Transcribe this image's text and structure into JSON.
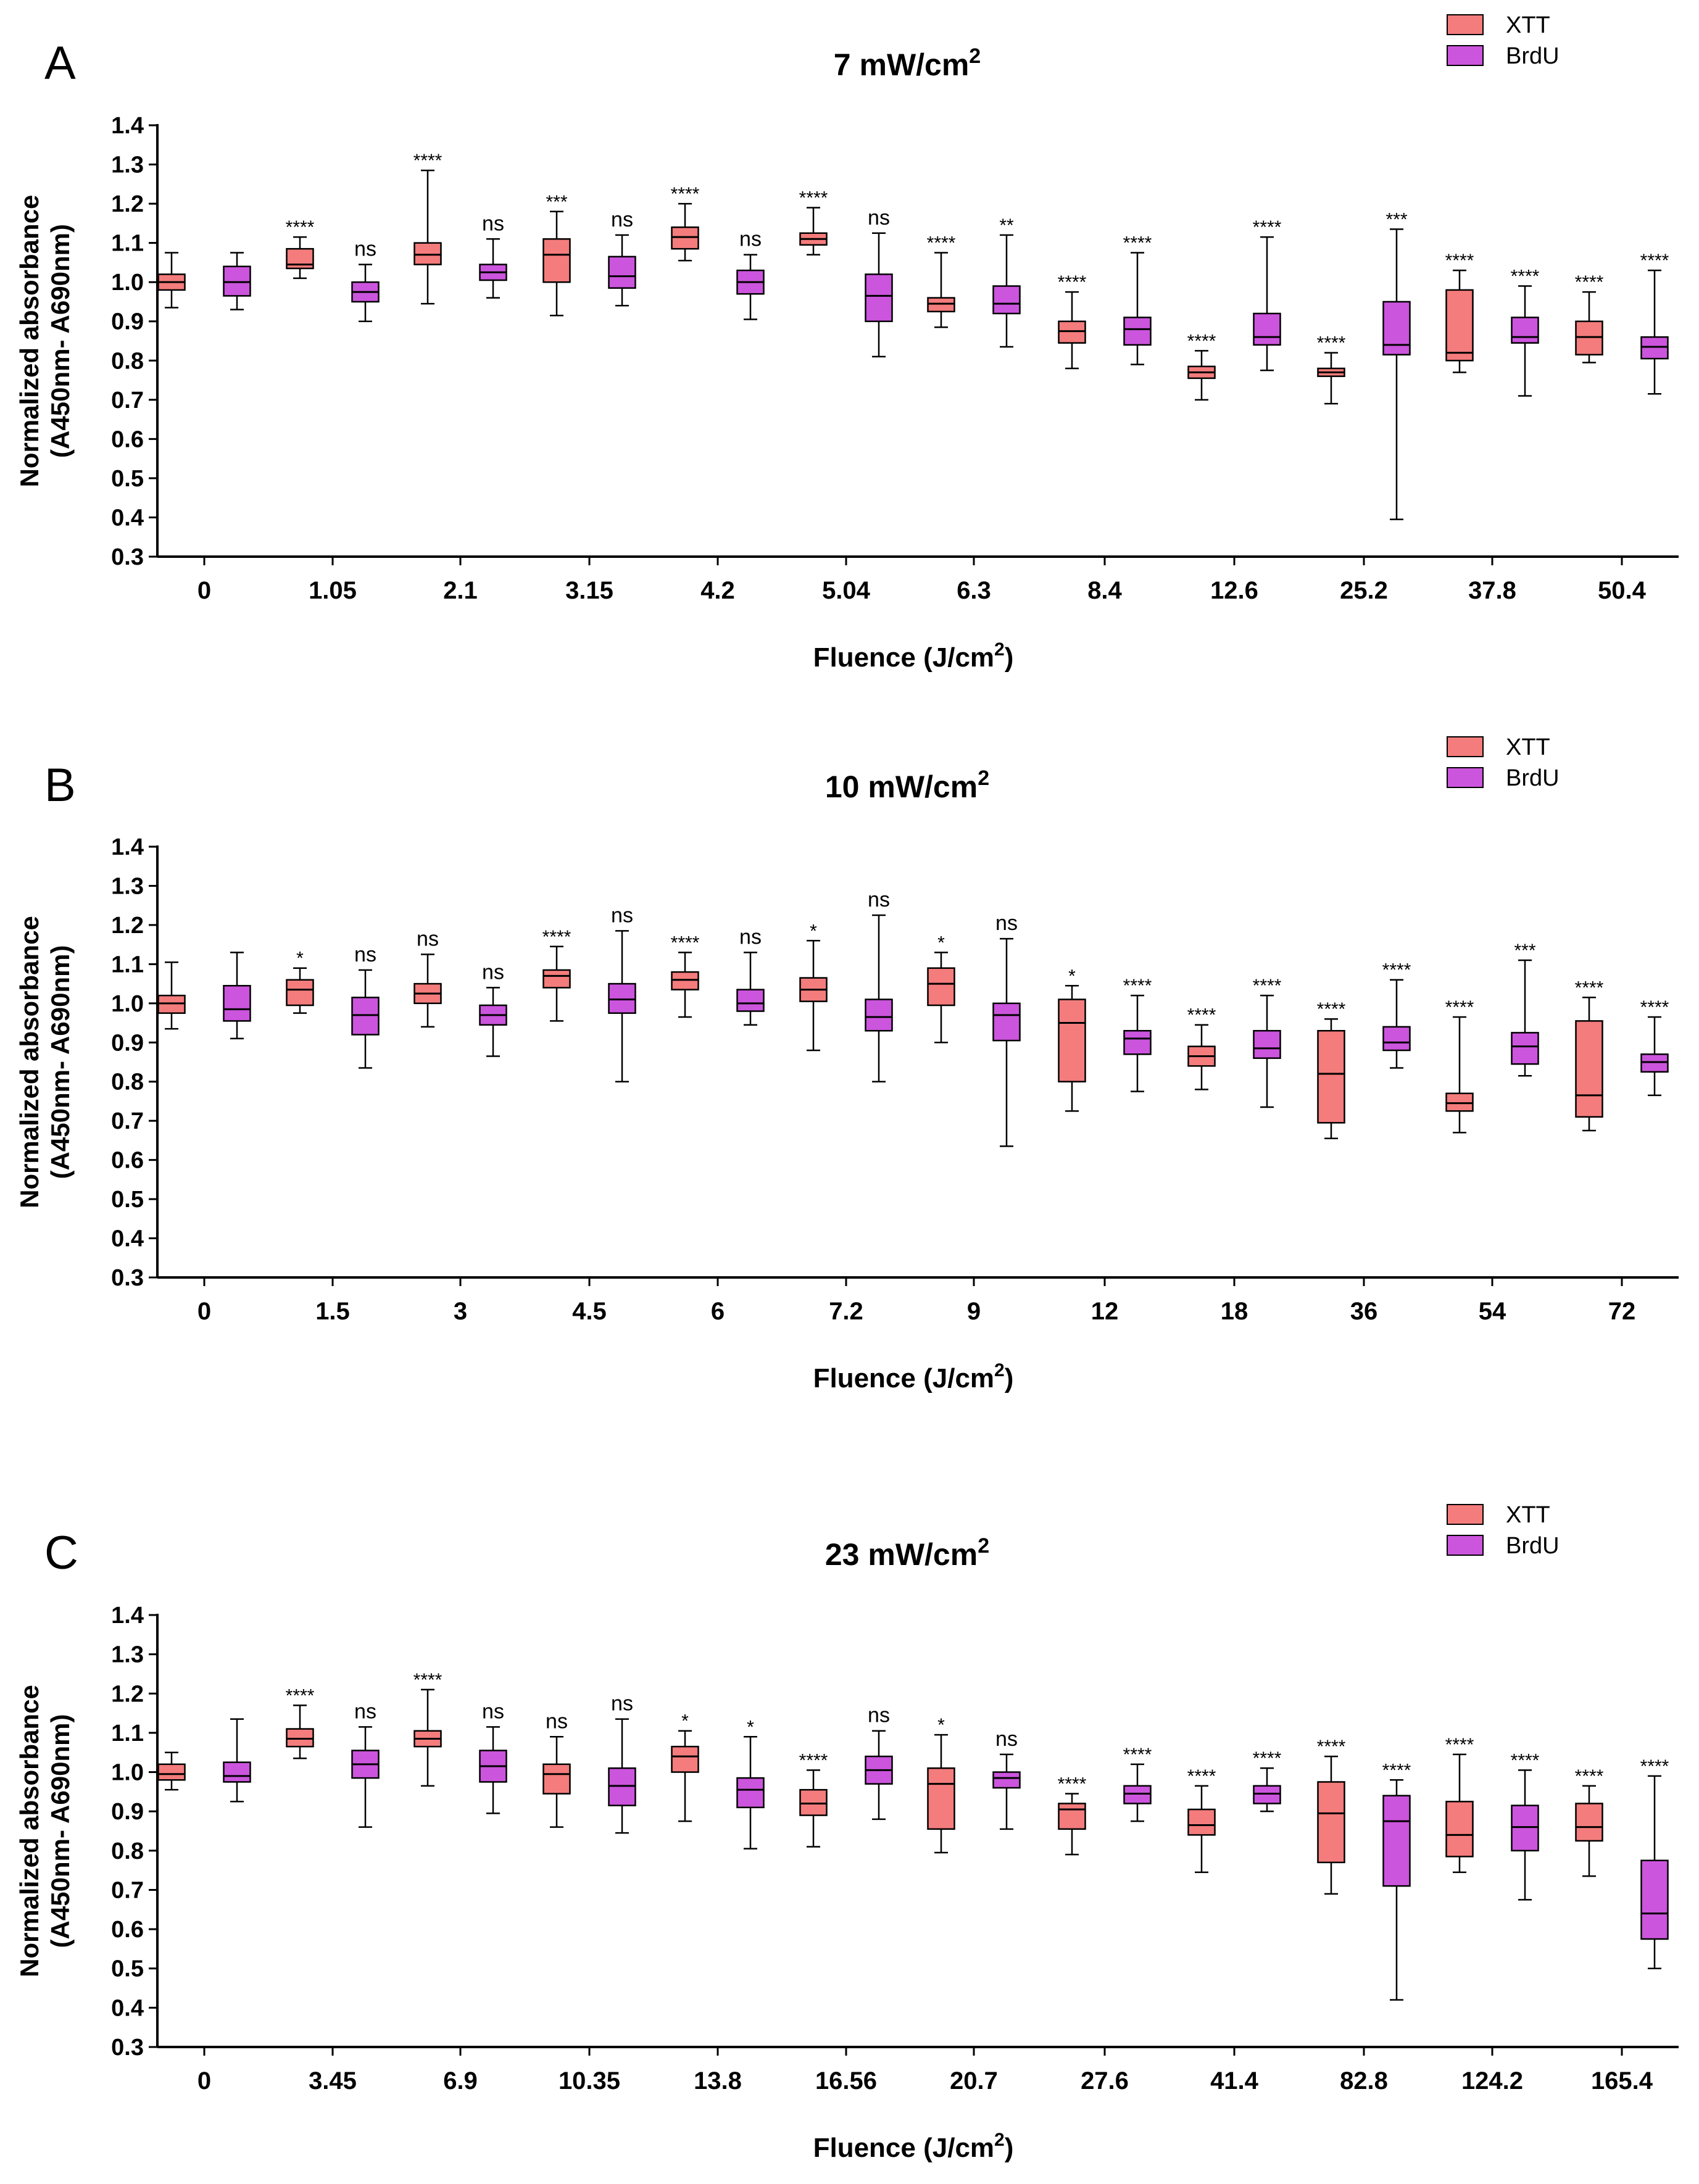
{
  "figure": {
    "legend_items": [
      {
        "label": "XTT",
        "color": "#F47C7C"
      },
      {
        "label": "BrdU",
        "color": "#CC55DD"
      }
    ],
    "box_stroke": "#000000"
  },
  "chart_data": [
    {
      "type": "boxplot",
      "panel_label": "A",
      "title_main": "7 mW/cm",
      "title_sup": "2",
      "ylabel_line1": "Normalized absorbance",
      "ylabel_line2": "(A450nm- A690nm)",
      "xlabel_main": "Fluence (J/cm",
      "xlabel_sup": "2",
      "xlabel_end": ")",
      "ylim": [
        0.3,
        1.4
      ],
      "yticks": [
        "0.3",
        "0.4",
        "0.5",
        "0.6",
        "0.7",
        "0.8",
        "0.9",
        "1.0",
        "1.1",
        "1.2",
        "1.3",
        "1.4"
      ],
      "categories": [
        "0",
        "1.05",
        "2.1",
        "3.15",
        "4.2",
        "5.04",
        "6.3",
        "8.4",
        "12.6",
        "25.2",
        "37.8",
        "50.4"
      ],
      "series": [
        {
          "name": "XTT",
          "boxes": [
            {
              "min": 0.935,
              "q1": 0.98,
              "median": 1.0,
              "q3": 1.02,
              "max": 1.075,
              "sig": ""
            },
            {
              "min": 1.01,
              "q1": 1.035,
              "median": 1.045,
              "q3": 1.085,
              "max": 1.115,
              "sig": "****"
            },
            {
              "min": 0.945,
              "q1": 1.045,
              "median": 1.07,
              "q3": 1.1,
              "max": 1.285,
              "sig": "****"
            },
            {
              "min": 0.915,
              "q1": 1.0,
              "median": 1.07,
              "q3": 1.11,
              "max": 1.18,
              "sig": "***"
            },
            {
              "min": 1.055,
              "q1": 1.085,
              "median": 1.115,
              "q3": 1.14,
              "max": 1.2,
              "sig": "****"
            },
            {
              "min": 1.07,
              "q1": 1.095,
              "median": 1.11,
              "q3": 1.125,
              "max": 1.19,
              "sig": "****"
            },
            {
              "min": 0.885,
              "q1": 0.925,
              "median": 0.945,
              "q3": 0.96,
              "max": 1.075,
              "sig": "****"
            },
            {
              "min": 0.78,
              "q1": 0.845,
              "median": 0.875,
              "q3": 0.9,
              "max": 0.975,
              "sig": "****"
            },
            {
              "min": 0.7,
              "q1": 0.755,
              "median": 0.77,
              "q3": 0.785,
              "max": 0.825,
              "sig": "****"
            },
            {
              "min": 0.69,
              "q1": 0.76,
              "median": 0.77,
              "q3": 0.78,
              "max": 0.82,
              "sig": "****"
            },
            {
              "min": 0.77,
              "q1": 0.8,
              "median": 0.82,
              "q3": 0.98,
              "max": 1.03,
              "sig": "****"
            },
            {
              "min": 0.795,
              "q1": 0.815,
              "median": 0.86,
              "q3": 0.9,
              "max": 0.975,
              "sig": "****"
            }
          ]
        },
        {
          "name": "BrdU",
          "boxes": [
            {
              "min": 0.93,
              "q1": 0.965,
              "median": 1.0,
              "q3": 1.04,
              "max": 1.075,
              "sig": ""
            },
            {
              "min": 0.9,
              "q1": 0.95,
              "median": 0.975,
              "q3": 1.0,
              "max": 1.045,
              "sig": "ns"
            },
            {
              "min": 0.96,
              "q1": 1.005,
              "median": 1.025,
              "q3": 1.045,
              "max": 1.11,
              "sig": "ns"
            },
            {
              "min": 0.94,
              "q1": 0.985,
              "median": 1.015,
              "q3": 1.065,
              "max": 1.12,
              "sig": "ns"
            },
            {
              "min": 0.905,
              "q1": 0.97,
              "median": 1.0,
              "q3": 1.03,
              "max": 1.07,
              "sig": "ns"
            },
            {
              "min": 0.81,
              "q1": 0.9,
              "median": 0.965,
              "q3": 1.02,
              "max": 1.125,
              "sig": "ns"
            },
            {
              "min": 0.835,
              "q1": 0.92,
              "median": 0.945,
              "q3": 0.99,
              "max": 1.12,
              "sig": "**"
            },
            {
              "min": 0.79,
              "q1": 0.84,
              "median": 0.88,
              "q3": 0.91,
              "max": 1.075,
              "sig": "****"
            },
            {
              "min": 0.775,
              "q1": 0.84,
              "median": 0.86,
              "q3": 0.92,
              "max": 1.115,
              "sig": "****"
            },
            {
              "min": 0.395,
              "q1": 0.815,
              "median": 0.84,
              "q3": 0.95,
              "max": 1.135,
              "sig": "***"
            },
            {
              "min": 0.71,
              "q1": 0.845,
              "median": 0.86,
              "q3": 0.91,
              "max": 0.99,
              "sig": "****"
            },
            {
              "min": 0.715,
              "q1": 0.805,
              "median": 0.835,
              "q3": 0.86,
              "max": 1.03,
              "sig": "****"
            }
          ]
        }
      ]
    },
    {
      "type": "boxplot",
      "panel_label": "B",
      "title_main": "10 mW/cm",
      "title_sup": "2",
      "ylabel_line1": "Normalized absorbance",
      "ylabel_line2": "(A450nm- A690nm)",
      "xlabel_main": "Fluence (J/cm",
      "xlabel_sup": "2",
      "xlabel_end": ")",
      "ylim": [
        0.3,
        1.4
      ],
      "yticks": [
        "0.3",
        "0.4",
        "0.5",
        "0.6",
        "0.7",
        "0.8",
        "0.9",
        "1.0",
        "1.1",
        "1.2",
        "1.3",
        "1.4"
      ],
      "categories": [
        "0",
        "1.5",
        "3",
        "4.5",
        "6",
        "7.2",
        "9",
        "12",
        "18",
        "36",
        "54",
        "72"
      ],
      "series": [
        {
          "name": "XTT",
          "boxes": [
            {
              "min": 0.935,
              "q1": 0.975,
              "median": 1.0,
              "q3": 1.02,
              "max": 1.105,
              "sig": ""
            },
            {
              "min": 0.975,
              "q1": 0.995,
              "median": 1.035,
              "q3": 1.06,
              "max": 1.09,
              "sig": "*"
            },
            {
              "min": 0.94,
              "q1": 1.0,
              "median": 1.025,
              "q3": 1.05,
              "max": 1.125,
              "sig": "ns"
            },
            {
              "min": 0.955,
              "q1": 1.04,
              "median": 1.07,
              "q3": 1.085,
              "max": 1.145,
              "sig": "****"
            },
            {
              "min": 0.965,
              "q1": 1.035,
              "median": 1.06,
              "q3": 1.08,
              "max": 1.13,
              "sig": "****"
            },
            {
              "min": 0.88,
              "q1": 1.005,
              "median": 1.035,
              "q3": 1.065,
              "max": 1.16,
              "sig": "*"
            },
            {
              "min": 0.9,
              "q1": 0.995,
              "median": 1.05,
              "q3": 1.09,
              "max": 1.13,
              "sig": "*"
            },
            {
              "min": 0.725,
              "q1": 0.8,
              "median": 0.95,
              "q3": 1.01,
              "max": 1.045,
              "sig": "*"
            },
            {
              "min": 0.78,
              "q1": 0.84,
              "median": 0.865,
              "q3": 0.89,
              "max": 0.945,
              "sig": "****"
            },
            {
              "min": 0.655,
              "q1": 0.695,
              "median": 0.82,
              "q3": 0.93,
              "max": 0.96,
              "sig": "****"
            },
            {
              "min": 0.67,
              "q1": 0.725,
              "median": 0.745,
              "q3": 0.77,
              "max": 0.965,
              "sig": "****"
            },
            {
              "min": 0.675,
              "q1": 0.71,
              "median": 0.765,
              "q3": 0.955,
              "max": 1.015,
              "sig": "****"
            }
          ]
        },
        {
          "name": "BrdU",
          "boxes": [
            {
              "min": 0.91,
              "q1": 0.955,
              "median": 0.985,
              "q3": 1.045,
              "max": 1.13,
              "sig": ""
            },
            {
              "min": 0.835,
              "q1": 0.92,
              "median": 0.97,
              "q3": 1.015,
              "max": 1.085,
              "sig": "ns"
            },
            {
              "min": 0.865,
              "q1": 0.945,
              "median": 0.97,
              "q3": 0.995,
              "max": 1.04,
              "sig": "ns"
            },
            {
              "min": 0.8,
              "q1": 0.975,
              "median": 1.01,
              "q3": 1.05,
              "max": 1.185,
              "sig": "ns"
            },
            {
              "min": 0.945,
              "q1": 0.98,
              "median": 1.0,
              "q3": 1.035,
              "max": 1.13,
              "sig": "ns"
            },
            {
              "min": 0.8,
              "q1": 0.93,
              "median": 0.965,
              "q3": 1.01,
              "max": 1.225,
              "sig": "ns"
            },
            {
              "min": 0.635,
              "q1": 0.905,
              "median": 0.97,
              "q3": 1.0,
              "max": 1.165,
              "sig": "ns"
            },
            {
              "min": 0.775,
              "q1": 0.87,
              "median": 0.91,
              "q3": 0.93,
              "max": 1.02,
              "sig": "****"
            },
            {
              "min": 0.735,
              "q1": 0.86,
              "median": 0.885,
              "q3": 0.93,
              "max": 1.02,
              "sig": "****"
            },
            {
              "min": 0.835,
              "q1": 0.88,
              "median": 0.9,
              "q3": 0.94,
              "max": 1.06,
              "sig": "****"
            },
            {
              "min": 0.815,
              "q1": 0.845,
              "median": 0.89,
              "q3": 0.925,
              "max": 1.11,
              "sig": "***"
            },
            {
              "min": 0.765,
              "q1": 0.825,
              "median": 0.85,
              "q3": 0.87,
              "max": 0.965,
              "sig": "****"
            }
          ]
        }
      ]
    },
    {
      "type": "boxplot",
      "panel_label": "C",
      "title_main": "23 mW/cm",
      "title_sup": "2",
      "ylabel_line1": "Normalized absorbance",
      "ylabel_line2": "(A450nm- A690nm)",
      "xlabel_main": "Fluence (J/cm",
      "xlabel_sup": "2",
      "xlabel_end": ")",
      "ylim": [
        0.3,
        1.4
      ],
      "yticks": [
        "0.3",
        "0.4",
        "0.5",
        "0.6",
        "0.7",
        "0.8",
        "0.9",
        "1.0",
        "1.1",
        "1.2",
        "1.3",
        "1.4"
      ],
      "categories": [
        "0",
        "3.45",
        "6.9",
        "10.35",
        "13.8",
        "16.56",
        "20.7",
        "27.6",
        "41.4",
        "82.8",
        "124.2",
        "165.4"
      ],
      "series": [
        {
          "name": "XTT",
          "boxes": [
            {
              "min": 0.955,
              "q1": 0.98,
              "median": 0.995,
              "q3": 1.02,
              "max": 1.05,
              "sig": ""
            },
            {
              "min": 1.035,
              "q1": 1.065,
              "median": 1.085,
              "q3": 1.11,
              "max": 1.17,
              "sig": "****"
            },
            {
              "min": 0.965,
              "q1": 1.065,
              "median": 1.085,
              "q3": 1.105,
              "max": 1.21,
              "sig": "****"
            },
            {
              "min": 0.86,
              "q1": 0.945,
              "median": 0.995,
              "q3": 1.02,
              "max": 1.09,
              "sig": "ns"
            },
            {
              "min": 0.875,
              "q1": 1.0,
              "median": 1.04,
              "q3": 1.065,
              "max": 1.105,
              "sig": "*"
            },
            {
              "min": 0.81,
              "q1": 0.89,
              "median": 0.92,
              "q3": 0.955,
              "max": 1.005,
              "sig": "****"
            },
            {
              "min": 0.795,
              "q1": 0.855,
              "median": 0.97,
              "q3": 1.01,
              "max": 1.095,
              "sig": "*"
            },
            {
              "min": 0.79,
              "q1": 0.855,
              "median": 0.905,
              "q3": 0.92,
              "max": 0.945,
              "sig": "****"
            },
            {
              "min": 0.745,
              "q1": 0.84,
              "median": 0.865,
              "q3": 0.905,
              "max": 0.965,
              "sig": "****"
            },
            {
              "min": 0.69,
              "q1": 0.77,
              "median": 0.895,
              "q3": 0.975,
              "max": 1.04,
              "sig": "****"
            },
            {
              "min": 0.745,
              "q1": 0.785,
              "median": 0.84,
              "q3": 0.925,
              "max": 1.045,
              "sig": "****"
            },
            {
              "min": 0.735,
              "q1": 0.825,
              "median": 0.86,
              "q3": 0.92,
              "max": 0.965,
              "sig": "****"
            }
          ]
        },
        {
          "name": "BrdU",
          "boxes": [
            {
              "min": 0.925,
              "q1": 0.975,
              "median": 0.99,
              "q3": 1.025,
              "max": 1.135,
              "sig": ""
            },
            {
              "min": 0.86,
              "q1": 0.985,
              "median": 1.02,
              "q3": 1.055,
              "max": 1.115,
              "sig": "ns"
            },
            {
              "min": 0.895,
              "q1": 0.975,
              "median": 1.015,
              "q3": 1.055,
              "max": 1.115,
              "sig": "ns"
            },
            {
              "min": 0.845,
              "q1": 0.915,
              "median": 0.965,
              "q3": 1.01,
              "max": 1.135,
              "sig": "ns"
            },
            {
              "min": 0.805,
              "q1": 0.91,
              "median": 0.955,
              "q3": 0.985,
              "max": 1.09,
              "sig": "*"
            },
            {
              "min": 0.88,
              "q1": 0.97,
              "median": 1.005,
              "q3": 1.04,
              "max": 1.105,
              "sig": "ns"
            },
            {
              "min": 0.855,
              "q1": 0.96,
              "median": 0.985,
              "q3": 1.0,
              "max": 1.045,
              "sig": "ns"
            },
            {
              "min": 0.875,
              "q1": 0.92,
              "median": 0.945,
              "q3": 0.965,
              "max": 1.02,
              "sig": "****"
            },
            {
              "min": 0.9,
              "q1": 0.92,
              "median": 0.945,
              "q3": 0.965,
              "max": 1.01,
              "sig": "****"
            },
            {
              "min": 0.42,
              "q1": 0.71,
              "median": 0.875,
              "q3": 0.94,
              "max": 0.98,
              "sig": "****"
            },
            {
              "min": 0.675,
              "q1": 0.8,
              "median": 0.86,
              "q3": 0.915,
              "max": 1.005,
              "sig": "****"
            },
            {
              "min": 0.5,
              "q1": 0.575,
              "median": 0.64,
              "q3": 0.775,
              "max": 0.99,
              "sig": "****"
            }
          ]
        }
      ]
    }
  ]
}
